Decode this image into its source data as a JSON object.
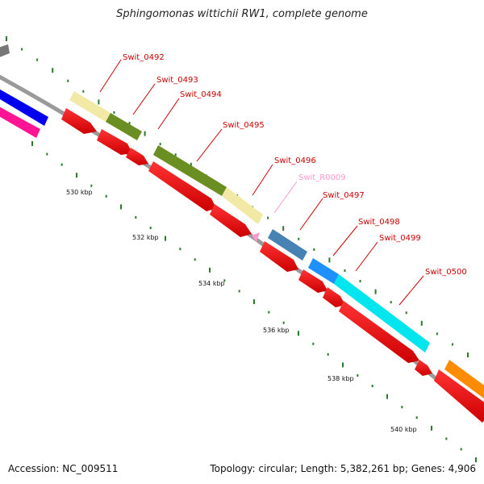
{
  "title": "Sphingomonas wittichii RW1, complete genome",
  "footer": {
    "accession": "Accession: NC_009511",
    "summary": "Topology: circular; Length: 5,382,261 bp; Genes: 4,906"
  },
  "colors": {
    "backbone": "#8a8a8a",
    "cds": "#ff0000",
    "rna": "#ff99cc",
    "label": "#cc0000",
    "rna_label": "#ff99cc",
    "tick": "#2a7a2a"
  },
  "scale_labels": [
    "530 kbp",
    "532 kbp",
    "534 kbp",
    "536 kbp",
    "538 kbp",
    "540 kbp"
  ],
  "genes": [
    {
      "name": "Swit_0492",
      "color": "#f2e9a6"
    },
    {
      "name": "Swit_0493",
      "color": "#6b8e23"
    },
    {
      "name": "Swit_0494",
      "color": "#ff0000"
    },
    {
      "name": "Swit_0495",
      "color": "#6b8e23"
    },
    {
      "name": "Swit_0496",
      "color": "#f2e9a6"
    },
    {
      "name": "Swit_R0009",
      "color": "#ff99cc"
    },
    {
      "name": "Swit_0497",
      "color": "#4682b4"
    },
    {
      "name": "Swit_0498",
      "color": "#1e90ff"
    },
    {
      "name": "Swit_0499",
      "color": "#00e5ee"
    },
    {
      "name": "Swit_0500",
      "color": "#ff8c00"
    }
  ]
}
